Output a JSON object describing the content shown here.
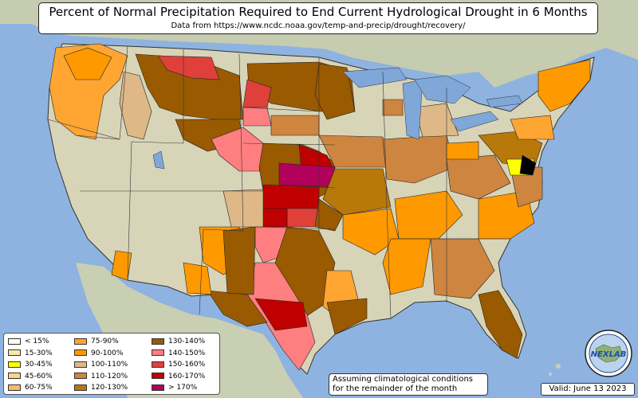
{
  "title": "Percent of Normal Precipitation Required to End Current Hydrological Drought in 6 Months",
  "subtitle": "Data from https://www.ncdc.noaa.gov/temp-and-precip/drought/recovery/",
  "legend": [
    {
      "label": "< 15%",
      "color": "#fffff0"
    },
    {
      "label": "15-30%",
      "color": "#ffe9a8"
    },
    {
      "label": "30-45%",
      "color": "#ffff00"
    },
    {
      "label": "45-60%",
      "color": "#fbd38a"
    },
    {
      "label": "60-75%",
      "color": "#fcb96a"
    },
    {
      "label": "75-90%",
      "color": "#ffa531"
    },
    {
      "label": "90-100%",
      "color": "#ff9900"
    },
    {
      "label": "100-110%",
      "color": "#deb887"
    },
    {
      "label": "110-120%",
      "color": "#cd853f"
    },
    {
      "label": "120-130%",
      "color": "#b8780a"
    },
    {
      "label": "130-140%",
      "color": "#9a5a00"
    },
    {
      "label": "140-150%",
      "color": "#ff7f80"
    },
    {
      "label": "150-160%",
      "color": "#e0403a"
    },
    {
      "label": "160-170%",
      "color": "#c00000"
    },
    {
      "label": "> 170%",
      "color": "#b3005a"
    }
  ],
  "note_line1": "Assuming climatological conditions",
  "note_line2": "for the remainder of the month",
  "valid": "Valid: June 13 2023",
  "logo_text": "NEXLAB",
  "colors": {
    "ocean": "#8fb3e0",
    "land_base": "#d8d4b8",
    "canada_mexico": "#c9cfb2",
    "lakes": "#7fa7d8"
  }
}
